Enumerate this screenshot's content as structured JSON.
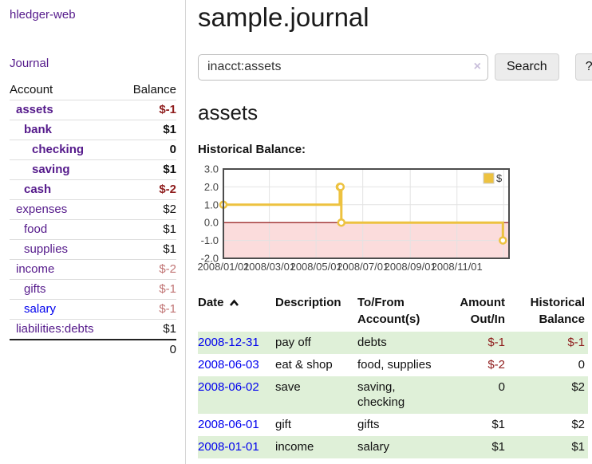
{
  "app": {
    "brand": "hledger-web"
  },
  "sidebar": {
    "nav": {
      "journal": "Journal"
    },
    "headers": {
      "account": "Account",
      "balance": "Balance"
    },
    "accounts": [
      {
        "name": "assets",
        "balance": "$-1"
      },
      {
        "name": "bank",
        "balance": "$1"
      },
      {
        "name": "checking",
        "balance": "0"
      },
      {
        "name": "saving",
        "balance": "$1"
      },
      {
        "name": "cash",
        "balance": "$-2"
      },
      {
        "name": "expenses",
        "balance": "$2"
      },
      {
        "name": "food",
        "balance": "$1"
      },
      {
        "name": "supplies",
        "balance": "$1"
      },
      {
        "name": "income",
        "balance": "$-2"
      },
      {
        "name": "gifts",
        "balance": "$-1"
      },
      {
        "name": "salary",
        "balance": "$-1"
      },
      {
        "name": "liabilities:debts",
        "balance": "$1"
      }
    ],
    "total": "0"
  },
  "header": {
    "title": "sample.journal"
  },
  "search": {
    "value": "inacct:assets",
    "clear_icon": "×",
    "search_button": "Search",
    "help_button": "?"
  },
  "content": {
    "account_heading": "assets",
    "chart_label": "Historical Balance:"
  },
  "chart_data": {
    "type": "line",
    "step": true,
    "series": [
      {
        "name": "$",
        "color": "#edc240",
        "points": [
          [
            "2008-01-01",
            1
          ],
          [
            "2008-06-01",
            2
          ],
          [
            "2008-06-02",
            2
          ],
          [
            "2008-06-03",
            0
          ],
          [
            "2008-12-31",
            -1
          ]
        ]
      }
    ],
    "x_ticks": [
      {
        "date": "2008-01-01",
        "label": "2008/01/01"
      },
      {
        "date": "2008-03-01",
        "label": "2008/03/01"
      },
      {
        "date": "2008-05-01",
        "label": "2008/05/01"
      },
      {
        "date": "2008-07-01",
        "label": "2008/07/01"
      },
      {
        "date": "2008-09-01",
        "label": "2008/09/01"
      },
      {
        "date": "2008-11-01",
        "label": "2008/11/01"
      },
      {
        "date": "2009-01-01",
        "label": ""
      }
    ],
    "y_ticks": [
      "3.0",
      "2.0",
      "1.0",
      "0.0",
      "-1.0",
      "-2.0"
    ],
    "ylim": [
      -2,
      3
    ],
    "xmin": "2008-01-01",
    "xmax": "2009-01-08",
    "legend": {
      "label": "$",
      "position": "top-right",
      "swatch_color": "#edc240"
    },
    "grid": true,
    "grid_color": "#e3e3e3",
    "border_color": "#4d4d4d",
    "zero_line_color": "#8b0000",
    "negative_region_color": "#fbdcdc"
  },
  "register": {
    "headers": {
      "date": "Date",
      "description": "Description",
      "accounts": "To/From Account(s)",
      "amount": "Amount Out/In",
      "balance": "Historical Balance"
    },
    "rows": [
      {
        "date": "2008-12-31",
        "description": "pay off",
        "accounts": "debts",
        "amount": "$-1",
        "balance": "$-1"
      },
      {
        "date": "2008-06-03",
        "description": "eat & shop",
        "accounts": "food, supplies",
        "amount": "$-2",
        "balance": "0"
      },
      {
        "date": "2008-06-02",
        "description": "save",
        "accounts": "saving, checking",
        "amount": "0",
        "balance": "$2"
      },
      {
        "date": "2008-06-01",
        "description": "gift",
        "accounts": "gifts",
        "amount": "$1",
        "balance": "$2"
      },
      {
        "date": "2008-01-01",
        "description": "income",
        "accounts": "salary",
        "amount": "$1",
        "balance": "$1"
      }
    ]
  }
}
